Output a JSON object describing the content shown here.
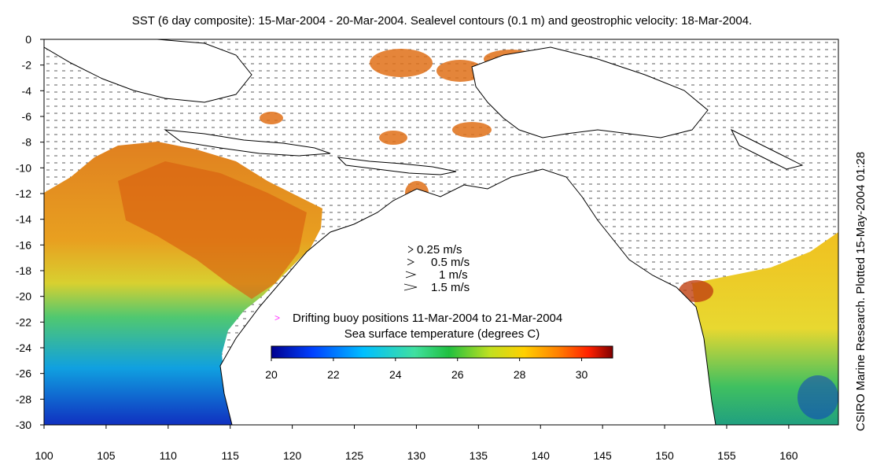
{
  "title": "SST (6 day composite): 15-Mar-2004 - 20-Mar-2004. Sealevel contours (0.1 m) and geostrophic velocity: 18-Mar-2004.",
  "credit": "CSIRO Marine Research. Plotted 15-May-2004 01:28",
  "axes": {
    "x_ticks": [
      "100",
      "105",
      "110",
      "115",
      "120",
      "125",
      "130",
      "135",
      "140",
      "145",
      "150",
      "155",
      "160"
    ],
    "y_ticks": [
      "0",
      "-2",
      "-4",
      "-6",
      "-8",
      "-10",
      "-12",
      "-14",
      "-16",
      "-18",
      "-20",
      "-22",
      "-24",
      "-26",
      "-28",
      "-30"
    ]
  },
  "velocity_legend": {
    "items": [
      {
        "label": "0.25 m/s",
        "speed": 0.25
      },
      {
        "label": "0.5 m/s",
        "speed": 0.5
      },
      {
        "label": "1 m/s",
        "speed": 1
      },
      {
        "label": "1.5 m/s",
        "speed": 1.5
      }
    ]
  },
  "buoy_legend": {
    "label": "Drifting buoy positions 11-Mar-2004 to 21-Mar-2004",
    "symbol": ">",
    "color": "#ff33ff"
  },
  "colorbar": {
    "title": "Sea surface temperature (degrees C)",
    "min": 20,
    "max": 31,
    "ticks": [
      "20",
      "22",
      "24",
      "26",
      "28",
      "30"
    ],
    "colors": [
      "#00008f",
      "#0040ff",
      "#00bfff",
      "#40e0a0",
      "#20c040",
      "#c0e020",
      "#ffd000",
      "#ff8000",
      "#ff2000",
      "#800000"
    ]
  }
}
